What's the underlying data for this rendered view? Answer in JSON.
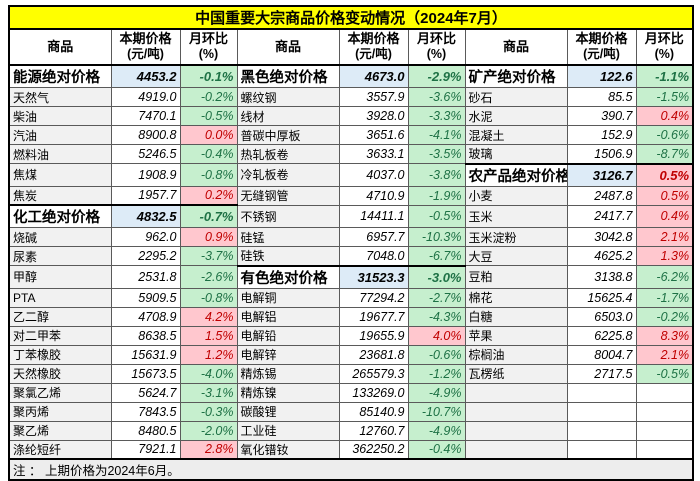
{
  "title": "中国重要大宗商品价格变动情况（2024年7月）",
  "note": "注 ： 上期价格为2024年6月。",
  "columns": {
    "commodity": "商品",
    "price_line1": "本期价格",
    "price_line2": "(元/吨)",
    "mom_line1": "月环比",
    "mom_line2": "(%)"
  },
  "colors": {
    "title_bg": "#FFFF00",
    "category_price_bg": "#DDEBF7",
    "name_col_bg": "#F1F1F1",
    "mom_positive_bg": "#FFC7CE",
    "mom_positive_text": "#C00000",
    "mom_negative_bg": "#C6EFCE",
    "mom_negative_text": "#1E7145",
    "note_bg": "#EDEDED"
  },
  "chart_data": {
    "type": "table",
    "title": "中国重要大宗商品价格变动情况（2024年7月）",
    "columns_per_group": [
      "商品",
      "本期价格(元/吨)",
      "月环比(%)"
    ],
    "note": "上期价格为2024年6月。"
  },
  "groups": [
    {
      "rows": [
        {
          "name": "能源绝对价格",
          "price": "4453.2",
          "mom": "-0.1%",
          "category": true
        },
        {
          "name": "天然气",
          "price": "4919.0",
          "mom": "-0.2%",
          "category": false
        },
        {
          "name": "柴油",
          "price": "7470.1",
          "mom": "-0.5%",
          "category": false
        },
        {
          "name": "汽油",
          "price": "8900.8",
          "mom": "0.0%",
          "category": false
        },
        {
          "name": "燃料油",
          "price": "5246.5",
          "mom": "-0.4%",
          "category": false
        },
        {
          "name": "焦煤",
          "price": "1908.9",
          "mom": "-0.8%",
          "category": false
        },
        {
          "name": "焦炭",
          "price": "1957.7",
          "mom": "0.2%",
          "category": false
        },
        {
          "name": "化工绝对价格",
          "price": "4832.5",
          "mom": "-0.7%",
          "category": true
        },
        {
          "name": "烧碱",
          "price": "962.0",
          "mom": "0.9%",
          "category": false
        },
        {
          "name": "尿素",
          "price": "2295.2",
          "mom": "-3.7%",
          "category": false
        },
        {
          "name": "甲醇",
          "price": "2531.8",
          "mom": "-2.6%",
          "category": false
        },
        {
          "name": "PTA",
          "price": "5909.5",
          "mom": "-0.8%",
          "category": false
        },
        {
          "name": "乙二醇",
          "price": "4708.9",
          "mom": "4.2%",
          "category": false
        },
        {
          "name": "对二甲苯",
          "price": "8638.5",
          "mom": "1.5%",
          "category": false
        },
        {
          "name": "丁苯橡胶",
          "price": "15631.9",
          "mom": "1.2%",
          "category": false
        },
        {
          "name": "天然橡胶",
          "price": "15673.5",
          "mom": "-4.0%",
          "category": false
        },
        {
          "name": "聚氯乙烯",
          "price": "5624.7",
          "mom": "-3.1%",
          "category": false
        },
        {
          "name": "聚丙烯",
          "price": "7843.5",
          "mom": "-0.3%",
          "category": false
        },
        {
          "name": "聚乙烯",
          "price": "8480.5",
          "mom": "-2.0%",
          "category": false
        },
        {
          "name": "涤纶短纤",
          "price": "7921.1",
          "mom": "2.8%",
          "category": false
        }
      ]
    },
    {
      "rows": [
        {
          "name": "黑色绝对价格",
          "price": "4673.0",
          "mom": "-2.9%",
          "category": true
        },
        {
          "name": "螺纹钢",
          "price": "3557.9",
          "mom": "-3.6%",
          "category": false
        },
        {
          "name": "线材",
          "price": "3928.0",
          "mom": "-3.3%",
          "category": false
        },
        {
          "name": "普碳中厚板",
          "price": "3651.6",
          "mom": "-4.1%",
          "category": false
        },
        {
          "name": "热轧板卷",
          "price": "3633.1",
          "mom": "-3.5%",
          "category": false
        },
        {
          "name": "冷轧板卷",
          "price": "4037.0",
          "mom": "-3.8%",
          "category": false
        },
        {
          "name": "无缝钢管",
          "price": "4710.9",
          "mom": "-1.9%",
          "category": false
        },
        {
          "name": "不锈钢",
          "price": "14411.1",
          "mom": "-0.5%",
          "category": false
        },
        {
          "name": "硅锰",
          "price": "6957.7",
          "mom": "-10.3%",
          "category": false
        },
        {
          "name": "硅铁",
          "price": "7048.0",
          "mom": "-6.7%",
          "category": false
        },
        {
          "name": "有色绝对价格",
          "price": "31523.3",
          "mom": "-3.0%",
          "category": true
        },
        {
          "name": "电解铜",
          "price": "77294.2",
          "mom": "-2.7%",
          "category": false
        },
        {
          "name": "电解铝",
          "price": "19677.7",
          "mom": "-4.3%",
          "category": false
        },
        {
          "name": "电解铅",
          "price": "19655.9",
          "mom": "4.0%",
          "category": false
        },
        {
          "name": "电解锌",
          "price": "23681.8",
          "mom": "-0.6%",
          "category": false
        },
        {
          "name": "精炼锡",
          "price": "265579.3",
          "mom": "-1.2%",
          "category": false
        },
        {
          "name": "精炼镍",
          "price": "133269.0",
          "mom": "-4.9%",
          "category": false
        },
        {
          "name": "碳酸锂",
          "price": "85140.9",
          "mom": "-10.7%",
          "category": false
        },
        {
          "name": "工业硅",
          "price": "12760.7",
          "mom": "-4.9%",
          "category": false
        },
        {
          "name": "氧化镨钕",
          "price": "362250.2",
          "mom": "-0.4%",
          "category": false
        }
      ]
    },
    {
      "rows": [
        {
          "name": "矿产绝对价格",
          "price": "122.6",
          "mom": "-1.1%",
          "category": true
        },
        {
          "name": "砂石",
          "price": "85.5",
          "mom": "-1.5%",
          "category": false
        },
        {
          "name": "水泥",
          "price": "390.7",
          "mom": "0.4%",
          "category": false
        },
        {
          "name": "混凝土",
          "price": "152.9",
          "mom": "-0.6%",
          "category": false
        },
        {
          "name": "玻璃",
          "price": "1506.9",
          "mom": "-8.7%",
          "category": false
        },
        {
          "name": "农产品绝对价格",
          "price": "3126.7",
          "mom": "0.5%",
          "category": true
        },
        {
          "name": "小麦",
          "price": "2487.8",
          "mom": "0.5%",
          "category": false
        },
        {
          "name": "玉米",
          "price": "2417.7",
          "mom": "0.4%",
          "category": false
        },
        {
          "name": "玉米淀粉",
          "price": "3042.8",
          "mom": "2.1%",
          "category": false
        },
        {
          "name": "大豆",
          "price": "4625.2",
          "mom": "1.3%",
          "category": false
        },
        {
          "name": "豆粕",
          "price": "3138.8",
          "mom": "-6.2%",
          "category": false
        },
        {
          "name": "棉花",
          "price": "15625.4",
          "mom": "-1.7%",
          "category": false
        },
        {
          "name": "白糖",
          "price": "6503.0",
          "mom": "-0.2%",
          "category": false
        },
        {
          "name": "苹果",
          "price": "6225.8",
          "mom": "8.3%",
          "category": false
        },
        {
          "name": "棕榈油",
          "price": "8004.7",
          "mom": "2.1%",
          "category": false
        },
        {
          "name": "瓦楞纸",
          "price": "2717.5",
          "mom": "-0.5%",
          "category": false
        },
        {
          "name": "",
          "price": "",
          "mom": "",
          "category": false
        },
        {
          "name": "",
          "price": "",
          "mom": "",
          "category": false
        },
        {
          "name": "",
          "price": "",
          "mom": "",
          "category": false
        },
        {
          "name": "",
          "price": "",
          "mom": "",
          "category": false
        }
      ]
    }
  ]
}
